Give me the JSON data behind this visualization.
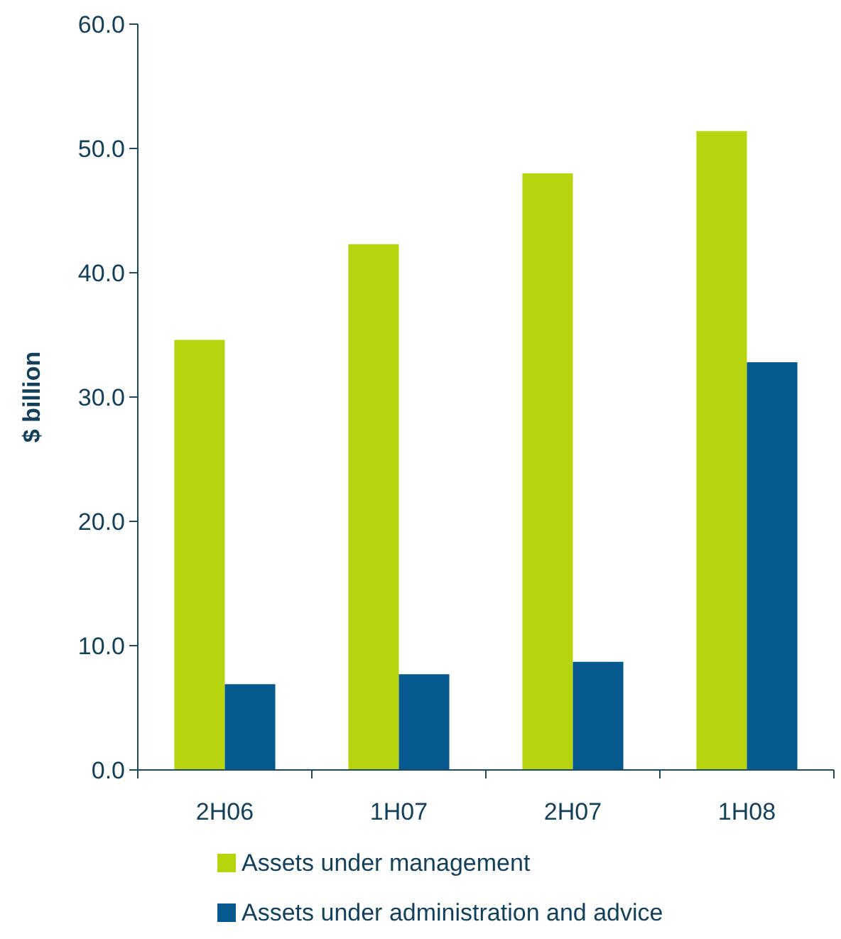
{
  "chart_data": {
    "type": "bar",
    "ylabel": "$ billion",
    "categories": [
      "2H06",
      "1H07",
      "2H07",
      "1H08"
    ],
    "series": [
      {
        "name": "Assets under management",
        "color": "#b7d40e",
        "values": [
          34.6,
          42.3,
          48.0,
          51.4
        ]
      },
      {
        "name": "Assets under administration and advice",
        "color": "#05598f",
        "values": [
          6.9,
          7.7,
          8.7,
          32.8
        ]
      }
    ],
    "ylim": [
      0,
      60
    ],
    "yticks": [
      {
        "value": 0,
        "label": "0.0"
      },
      {
        "value": 10,
        "label": "10.0"
      },
      {
        "value": 20,
        "label": "20.0"
      },
      {
        "value": 30,
        "label": "30.0"
      },
      {
        "value": 40,
        "label": "40.0"
      },
      {
        "value": 50,
        "label": "50.0"
      },
      {
        "value": 60,
        "label": "60.0"
      }
    ],
    "grid": false,
    "legend": "bottom"
  }
}
